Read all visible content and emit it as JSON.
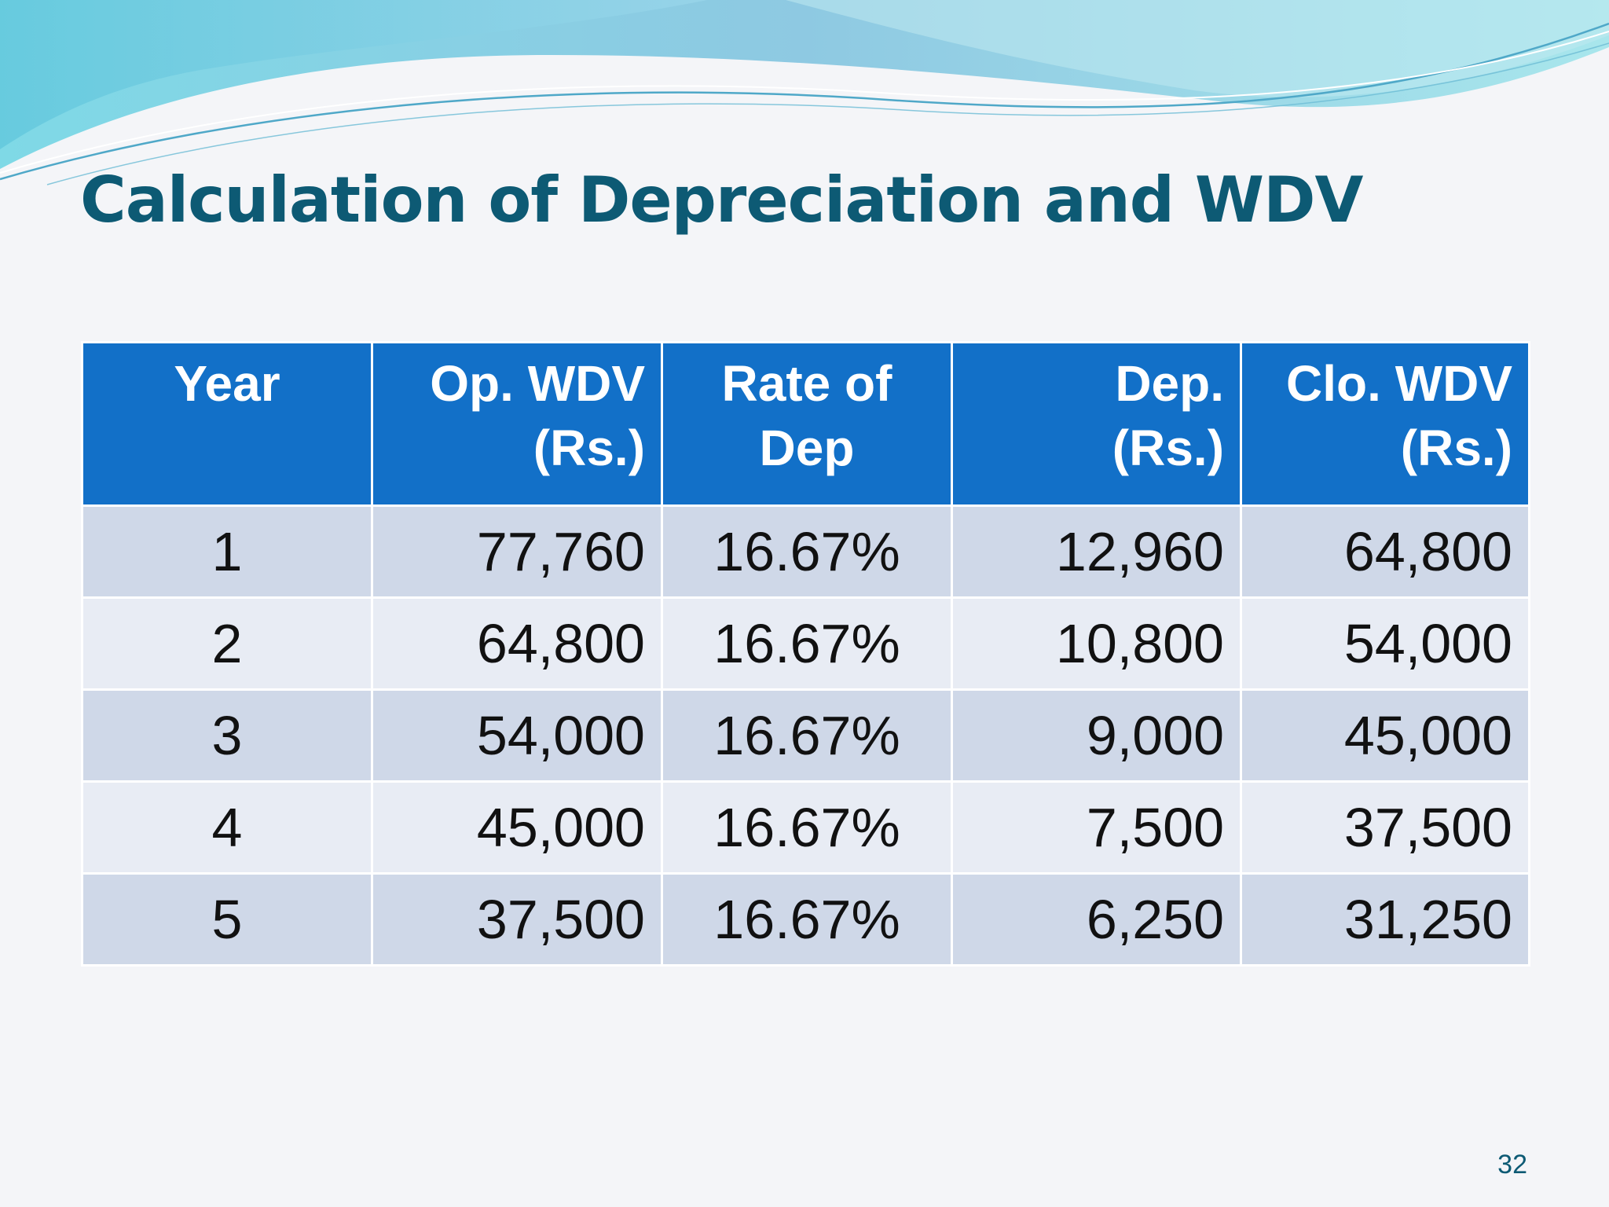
{
  "slide": {
    "title": "Calculation of Depreciation and WDV",
    "page_number": "32"
  },
  "table": {
    "headers": [
      {
        "line1": "Year",
        "line2": ""
      },
      {
        "line1": "Op. WDV",
        "line2": "(Rs.)"
      },
      {
        "line1": "Rate of",
        "line2": "Dep"
      },
      {
        "line1": "Dep.",
        "line2": "(Rs.)"
      },
      {
        "line1": "Clo. WDV",
        "line2": "(Rs.)"
      }
    ],
    "rows": [
      [
        "1",
        "77,760",
        "16.67%",
        "12,960",
        "64,800"
      ],
      [
        "2",
        "64,800",
        "16.67%",
        "10,800",
        "54,000"
      ],
      [
        "3",
        "54,000",
        "16.67%",
        "9,000",
        "45,000"
      ],
      [
        "4",
        "45,000",
        "16.67%",
        "7,500",
        "37,500"
      ],
      [
        "5",
        "37,500",
        "16.67%",
        "6,250",
        "31,250"
      ]
    ]
  },
  "colors": {
    "header_bg": "#1270c8",
    "row_odd_bg": "#cfd8e8",
    "row_even_bg": "#e8ecf4",
    "title": "#0d5a74"
  }
}
